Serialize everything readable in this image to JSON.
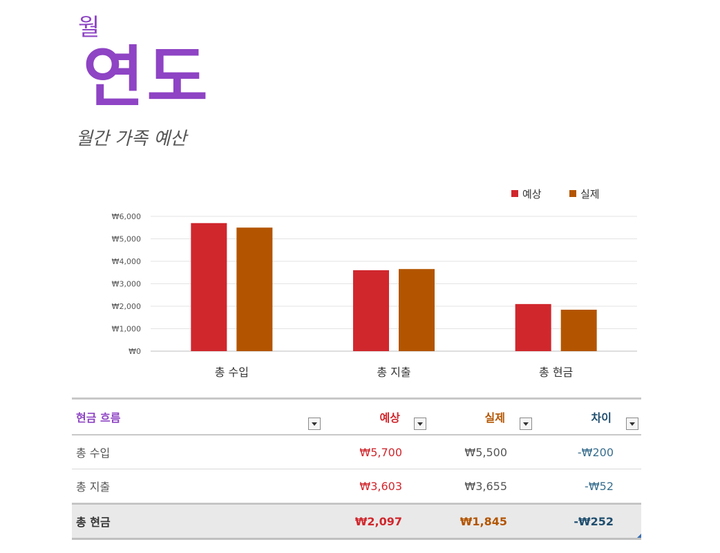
{
  "header": {
    "month": "월",
    "year": "연도",
    "subtitle": "월간 가족 예산"
  },
  "colors": {
    "accent": "#8e44c4",
    "expected": "#d0272d",
    "actual": "#b35500",
    "diff": "#1f4e6e"
  },
  "chart_data": {
    "type": "bar",
    "categories": [
      "총 수입",
      "총 지출",
      "총 현금"
    ],
    "series": [
      {
        "name": "예상",
        "values": [
          5700,
          3603,
          2097
        ],
        "color": "#d0272d"
      },
      {
        "name": "실제",
        "values": [
          5500,
          3655,
          1845
        ],
        "color": "#b35500"
      }
    ],
    "ylim": [
      0,
      6000
    ],
    "yticks": [
      "₩0",
      "₩1,000",
      "₩2,000",
      "₩3,000",
      "₩4,000",
      "₩5,000",
      "₩6,000"
    ],
    "grid": true,
    "legend": "top-right"
  },
  "table": {
    "headers": {
      "label": "현금 흐름",
      "expected": "예상",
      "actual": "실제",
      "diff": "차이"
    },
    "rows": [
      {
        "label": "총 수입",
        "expected": "₩5,700",
        "actual": "₩5,500",
        "diff": "-₩200"
      },
      {
        "label": "총 지출",
        "expected": "₩3,603",
        "actual": "₩3,655",
        "diff": "-₩52"
      }
    ],
    "total": {
      "label": "총 현금",
      "expected": "₩2,097",
      "actual": "₩1,845",
      "diff": "-₩252"
    }
  }
}
